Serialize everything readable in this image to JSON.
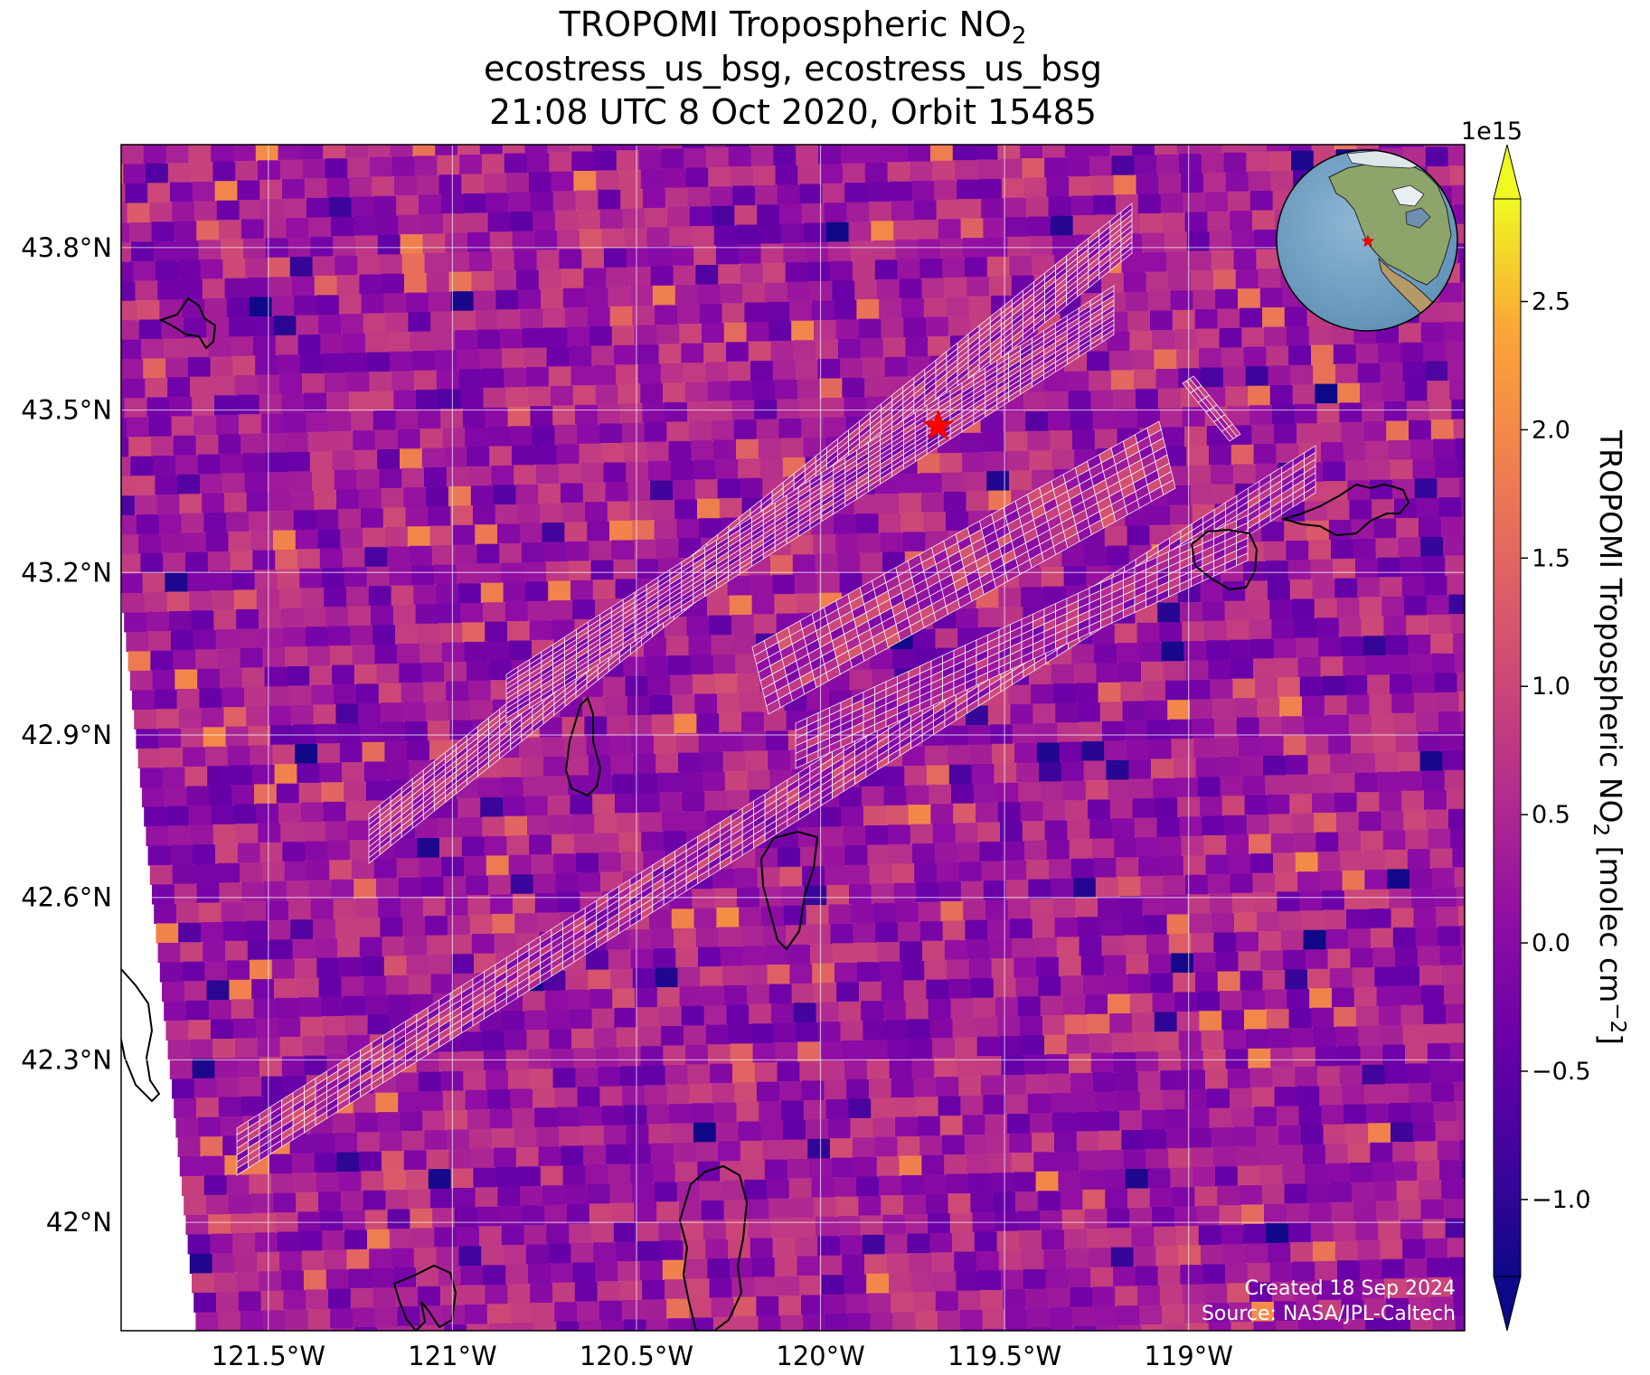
{
  "title": {
    "line1_main": "TROPOMI Tropospheric NO",
    "line1_sub": "2",
    "line2": "ecostress_us_bsg, ecostress_us_bsg",
    "line3": "21:08 UTC 8 Oct 2020, Orbit 15485"
  },
  "map": {
    "lon_range": [
      -121.9,
      -118.25
    ],
    "lat_range": [
      41.8,
      43.99
    ],
    "lon_ticks": [
      {
        "value": -121.5,
        "label": "121.5°W"
      },
      {
        "value": -121.0,
        "label": "121°W"
      },
      {
        "value": -120.5,
        "label": "120.5°W"
      },
      {
        "value": -120.0,
        "label": "120°W"
      },
      {
        "value": -119.5,
        "label": "119.5°W"
      },
      {
        "value": -119.0,
        "label": "119°W"
      }
    ],
    "lat_ticks": [
      {
        "value": 43.8,
        "label": "43.8°N"
      },
      {
        "value": 43.5,
        "label": "43.5°N"
      },
      {
        "value": 43.2,
        "label": "43.2°N"
      },
      {
        "value": 42.9,
        "label": "42.9°N"
      },
      {
        "value": 42.6,
        "label": "42.6°N"
      },
      {
        "value": 42.3,
        "label": "42.3°N"
      },
      {
        "value": 42.0,
        "label": "42°N"
      }
    ],
    "grid": true,
    "star_marker": {
      "lon": -119.68,
      "lat": 43.47,
      "color": "#ff0000"
    },
    "colormap": "plasma"
  },
  "colorbar": {
    "label_main": "TROPOMI Tropospheric NO",
    "label_sub": "2",
    "label_units": " [molec cm",
    "label_exp": "−2",
    "label_close": "]",
    "exponent": "1e15",
    "range": [
      -1.3,
      2.9
    ],
    "extend": "both",
    "ticks": [
      {
        "value": 2.5,
        "label": "2.5"
      },
      {
        "value": 2.0,
        "label": "2.0"
      },
      {
        "value": 1.5,
        "label": "1.5"
      },
      {
        "value": 1.0,
        "label": "1.0"
      },
      {
        "value": 0.5,
        "label": "0.5"
      },
      {
        "value": 0.0,
        "label": "0.0"
      },
      {
        "value": -0.5,
        "label": "−0.5"
      },
      {
        "value": -1.0,
        "label": "−1.0"
      }
    ]
  },
  "inset": {
    "type": "globe",
    "marker_color": "#ff0000"
  },
  "footer": {
    "created": "Created 18 Sep 2024",
    "source": "Source: NASA/JPL-Caltech"
  }
}
